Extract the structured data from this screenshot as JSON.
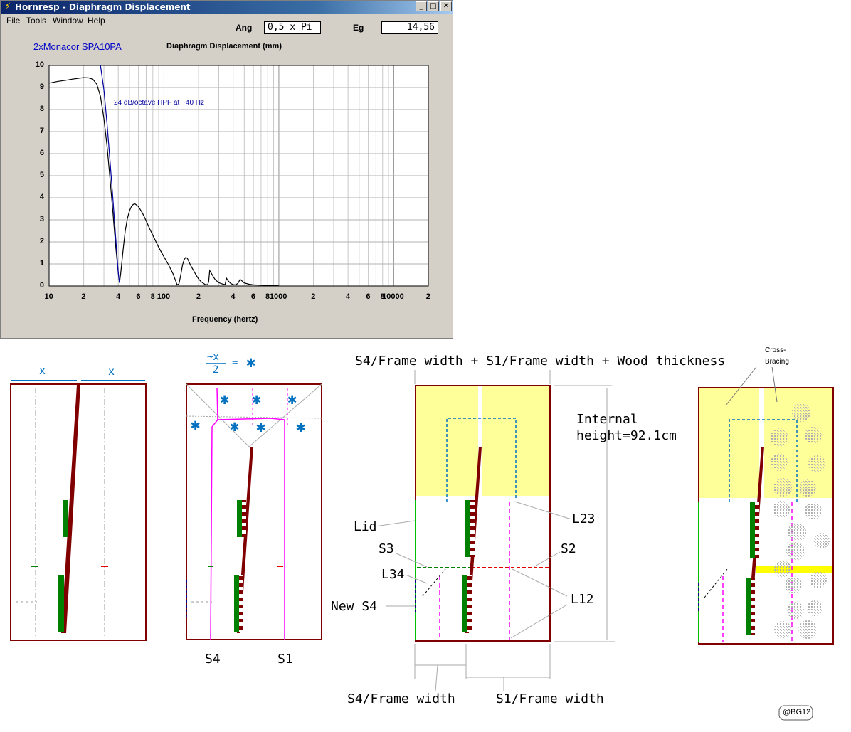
{
  "window": {
    "title": "Hornresp - Diaphragm Displacement",
    "minimize_glyph": "_",
    "maximize_glyph": "□",
    "close_glyph": "✕",
    "app_icon_glyph": "⚡"
  },
  "menu": [
    "File",
    "Tools",
    "Window",
    "Help"
  ],
  "params": {
    "ang_label": "Ang",
    "ang_value": "0,5 x Pi",
    "eg_label": "Eg",
    "eg_value": "14,56"
  },
  "speaker_name": "2xMonacor SPA10PA",
  "annotation": "24 dB/octave HPF at ~40 Hz",
  "chart_data": {
    "type": "line",
    "title": "Diaphragm Displacement (mm)",
    "xlabel": "Frequency (hertz)",
    "ylabel": "",
    "x_scale": "log",
    "xlim": [
      10,
      20000
    ],
    "ylim": [
      0,
      10
    ],
    "grid": true,
    "y_ticks": [
      "0",
      "1",
      "2",
      "3",
      "4",
      "5",
      "6",
      "7",
      "8",
      "9",
      "10"
    ],
    "x_ticks": [
      "10",
      "2",
      "4",
      "6",
      "8",
      "100",
      "2",
      "4",
      "6",
      "8",
      "1000",
      "2",
      "4",
      "6",
      "8",
      "10000",
      "2"
    ],
    "series": [
      {
        "name": "",
        "color": "#000000",
        "x": [
          10,
          12,
          14,
          16,
          18,
          20,
          22,
          24,
          26,
          28,
          30,
          32,
          34,
          36,
          38,
          40,
          41,
          42,
          44,
          46,
          48,
          50,
          52,
          54,
          56,
          60,
          65,
          70,
          75,
          80,
          90,
          100,
          110,
          120,
          125,
          130,
          135,
          140,
          145,
          150,
          155,
          160,
          170,
          180,
          190,
          200,
          210,
          220,
          230,
          240,
          245,
          250,
          260,
          270,
          280,
          300,
          320,
          340,
          350,
          360,
          380,
          400,
          420,
          440,
          460,
          480,
          500,
          550,
          600,
          700,
          800,
          900,
          1000
        ],
        "y": [
          9.2,
          9.28,
          9.33,
          9.38,
          9.42,
          9.45,
          9.44,
          9.38,
          9.15,
          8.6,
          7.6,
          6.3,
          4.8,
          3.3,
          1.8,
          0.6,
          0.15,
          0.55,
          1.6,
          2.5,
          3.05,
          3.4,
          3.6,
          3.7,
          3.72,
          3.6,
          3.3,
          2.95,
          2.6,
          2.3,
          1.75,
          1.32,
          0.95,
          0.55,
          0.3,
          0.05,
          0.1,
          0.5,
          0.95,
          1.2,
          1.3,
          1.25,
          0.95,
          0.72,
          0.5,
          0.32,
          0.2,
          0.12,
          0.06,
          0.06,
          0.2,
          0.7,
          0.55,
          0.4,
          0.28,
          0.15,
          0.1,
          0.06,
          0.35,
          0.25,
          0.12,
          0.06,
          0.05,
          0.12,
          0.3,
          0.22,
          0.14,
          0.08,
          0.05,
          0.04,
          0.03,
          0.02,
          0.01
        ]
      },
      {
        "name": "",
        "color": "#0000a0",
        "x": [
          28,
          30,
          32,
          34,
          36,
          38,
          40,
          41
        ],
        "y": [
          10,
          8.9,
          7.3,
          5.6,
          3.9,
          2.2,
          0.6,
          0.15
        ]
      }
    ]
  },
  "sketch": {
    "panel1_x_left": "x",
    "panel1_x_right": "x",
    "panel2_formula_num": "~x",
    "panel2_formula_den": "2",
    "panel2_formula_eq": "=",
    "panel2_star": "✱",
    "panel2_s4": "S4",
    "panel2_s1": "S1",
    "panel3_top": "S4/Frame width + S1/Frame width + Wood thickness",
    "panel3_internal1": "Internal",
    "panel3_internal2": "height=92.1cm",
    "lid": "Lid",
    "s3": "S3",
    "l34": "L34",
    "new_s4": "New S4",
    "l23": "L23",
    "s2": "S2",
    "l12": "L12",
    "s4_fw": "S4/Frame width",
    "s1_fw": "S1/Frame width",
    "cross1": "Cross-",
    "cross2": "Bracing",
    "signature": "@BG12",
    "colors": {
      "frame": "#800000",
      "yellow": "#ffff99",
      "blue": "#0070c0",
      "magenta": "#ff00ff",
      "green": "#008000"
    }
  }
}
